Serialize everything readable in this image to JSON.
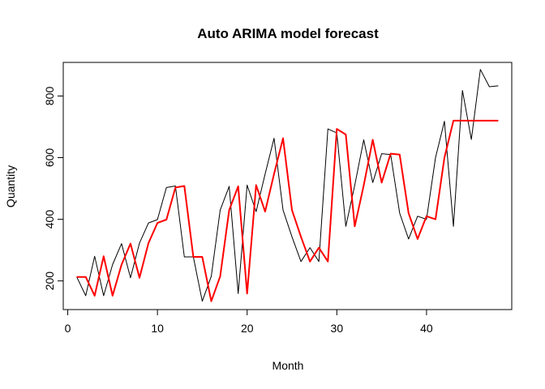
{
  "chart_data": {
    "type": "line",
    "title": "Auto ARIMA model forecast",
    "xlabel": "Month",
    "ylabel": "Quantity",
    "xlim": [
      -0.5,
      49.5
    ],
    "ylim": [
      107,
      909
    ],
    "x_ticks": [
      0,
      10,
      20,
      30,
      40
    ],
    "y_ticks": [
      200,
      400,
      600,
      800
    ],
    "grid": false,
    "series": [
      {
        "color": "#000000",
        "line_width": 1,
        "x": [
          1,
          2,
          3,
          4,
          5,
          6,
          7,
          8,
          9,
          10,
          11,
          12,
          13,
          14,
          15,
          16,
          17,
          18,
          19,
          20,
          21,
          22,
          23,
          24,
          25,
          26,
          27,
          28,
          29,
          30,
          31,
          32,
          33,
          34,
          35,
          36,
          37,
          38,
          39,
          40,
          41,
          42,
          43,
          44,
          45,
          46,
          47,
          48
        ],
        "values": [
          213,
          152,
          280,
          152,
          253,
          321,
          210,
          323,
          388,
          399,
          503,
          508,
          278,
          278,
          134,
          215,
          430,
          507,
          159,
          511,
          425,
          547,
          663,
          430,
          343,
          263,
          308,
          263,
          693,
          680,
          377,
          510,
          658,
          519,
          613,
          610,
          420,
          336,
          410,
          400,
          600,
          718,
          377,
          818,
          659,
          886,
          830,
          833
        ]
      },
      {
        "color": "#ff0000",
        "line_width": 2,
        "x": [
          1,
          2,
          3,
          4,
          5,
          6,
          7,
          8,
          9,
          10,
          11,
          12,
          13,
          14,
          15,
          16,
          17,
          18,
          19,
          20,
          21,
          22,
          23,
          24,
          25,
          26,
          27,
          28,
          29,
          30,
          31,
          32,
          33,
          34,
          35,
          36,
          37,
          38,
          39,
          40,
          41,
          42,
          43,
          44,
          45,
          46,
          47,
          48
        ],
        "values": [
          213,
          213,
          152,
          280,
          152,
          253,
          321,
          210,
          323,
          388,
          399,
          503,
          508,
          278,
          278,
          134,
          215,
          430,
          507,
          159,
          511,
          425,
          547,
          663,
          430,
          343,
          263,
          308,
          263,
          693,
          675,
          377,
          510,
          658,
          519,
          613,
          610,
          420,
          336,
          410,
          400,
          600,
          720,
          720,
          720,
          720,
          720,
          720
        ]
      }
    ]
  }
}
